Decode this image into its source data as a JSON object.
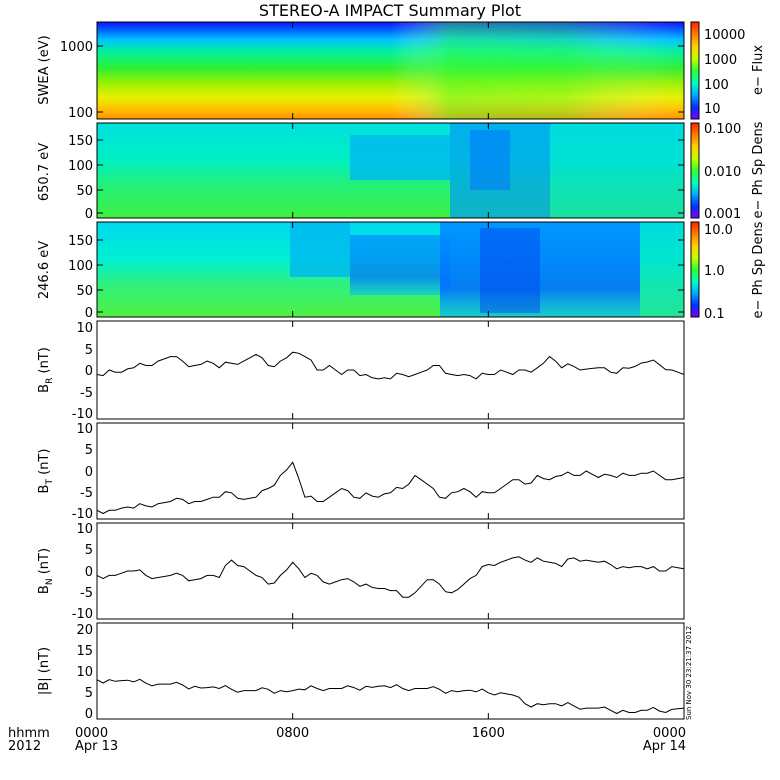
{
  "title": "STEREO-A IMPACT Summary Plot",
  "timestamp": "Sun Nov 30 23:21:37 2012",
  "x_axis": {
    "label_row1": "hhmm",
    "label_row2": "2012",
    "ticks": [
      {
        "hours": 0,
        "time": "0000",
        "date": "Apr 13"
      },
      {
        "hours": 8,
        "time": "0800",
        "date": ""
      },
      {
        "hours": 16,
        "time": "1600",
        "date": ""
      },
      {
        "hours": 24,
        "time": "0000",
        "date": "Apr 14"
      }
    ]
  },
  "colors": {
    "background": "#ffffff",
    "line": "#000000",
    "spectrogram_scale": [
      "#7f00ff",
      "#0030ff",
      "#00aaff",
      "#00ffc0",
      "#30ff30",
      "#c0ff00",
      "#ffd000",
      "#ff8000",
      "#ff2000"
    ]
  },
  "panels": {
    "swea": {
      "ylabel": "SWEA (eV)",
      "yticks": [
        "1000",
        "100"
      ],
      "colorbar_label": "e− Flux",
      "colorbar_ticks": [
        "10000",
        "1000",
        "100",
        "10"
      ]
    },
    "pad650": {
      "ylabel": "650.7 eV",
      "yticks": [
        "150",
        "100",
        "50",
        "0"
      ],
      "colorbar_label": "e− Ph Sp Dens",
      "colorbar_ticks": [
        "0.100",
        "0.010",
        "0.001"
      ]
    },
    "pad246": {
      "ylabel": "246.6 eV",
      "yticks": [
        "150",
        "100",
        "50",
        "0"
      ],
      "colorbar_label": "e− Ph Sp Dens",
      "colorbar_ticks": [
        "10.0",
        "1.0",
        "0.1"
      ]
    },
    "br": {
      "ylabel": "B",
      "ysub": "R",
      "yunit": " (nT)",
      "yticks": [
        "10",
        "5",
        "0",
        "-5",
        "-10"
      ]
    },
    "bt": {
      "ylabel": "B",
      "ysub": "T",
      "yunit": " (nT)",
      "yticks": [
        "10",
        "5",
        "0",
        "-5",
        "-10"
      ]
    },
    "bn": {
      "ylabel": "B",
      "ysub": "N",
      "yunit": " (nT)",
      "yticks": [
        "10",
        "5",
        "0",
        "-5",
        "-10"
      ]
    },
    "bmag": {
      "ylabel": "|B| (nT)",
      "yticks": [
        "20",
        "15",
        "10",
        "5",
        "0"
      ]
    }
  },
  "chart_data": [
    {
      "type": "heatmap",
      "name": "SWEA",
      "x_range_hours": [
        0,
        24
      ],
      "y_scale": "log",
      "ylim": [
        90,
        2000
      ],
      "color_scale": "log",
      "color_range": [
        10,
        20000
      ]
    },
    {
      "type": "heatmap",
      "name": "650.7 eV",
      "x_range_hours": [
        0,
        24
      ],
      "ylim": [
        0,
        180
      ],
      "color_scale": "log",
      "color_range": [
        0.001,
        0.1
      ]
    },
    {
      "type": "heatmap",
      "name": "246.6 eV",
      "x_range_hours": [
        0,
        24
      ],
      "ylim": [
        0,
        180
      ],
      "color_scale": "log",
      "color_range": [
        0.1,
        10
      ]
    },
    {
      "type": "line",
      "name": "BR",
      "x_hours": [
        0,
        0.5,
        1,
        1.5,
        2,
        2.5,
        3,
        3.5,
        4,
        4.5,
        5,
        5.5,
        6,
        6.5,
        7,
        7.5,
        8,
        8.5,
        9,
        9.5,
        10,
        10.5,
        11,
        11.5,
        12,
        12.5,
        13,
        13.5,
        14,
        14.5,
        15,
        15.5,
        16,
        16.5,
        17,
        17.5,
        18,
        18.5,
        19,
        19.5,
        20,
        20.5,
        21,
        21.5,
        22,
        22.5,
        23,
        23.5,
        24
      ],
      "values": [
        -1,
        0,
        -0.5,
        0.5,
        1,
        2,
        3,
        2,
        1,
        2,
        0.5,
        1.5,
        2,
        3.5,
        1,
        2,
        4,
        3,
        0,
        1,
        -1,
        0,
        -1,
        -2,
        -2,
        -1,
        -1,
        0,
        1,
        -1,
        -1,
        -2,
        -1,
        0,
        -1,
        0,
        0.5,
        3,
        0.5,
        0.8,
        0.2,
        0.5,
        -0.5,
        0.5,
        0.8,
        1.8,
        1.2,
        0,
        -1
      ],
      "ylim": [
        -11,
        11
      ]
    },
    {
      "type": "line",
      "name": "BT",
      "x_hours": [
        0,
        0.5,
        1,
        1.5,
        2,
        2.5,
        3,
        3.5,
        4,
        4.5,
        5,
        5.5,
        6,
        6.5,
        7,
        7.5,
        8,
        8.5,
        9,
        9.5,
        10,
        10.5,
        11,
        11.5,
        12,
        12.5,
        13,
        13.5,
        14,
        14.5,
        15,
        15.5,
        16,
        16.5,
        17,
        17.5,
        18,
        18.5,
        19,
        19.5,
        20,
        20.5,
        21,
        21.5,
        22,
        22.5,
        23,
        23.5,
        24
      ],
      "values": [
        -9,
        -9,
        -8.5,
        -8.5,
        -8,
        -7.5,
        -7,
        -6.5,
        -7,
        -6.5,
        -6,
        -5,
        -6.5,
        -6,
        -4,
        -1,
        2,
        -6,
        -7,
        -6,
        -4,
        -6,
        -5,
        -6,
        -5,
        -4,
        -1,
        -3,
        -6,
        -5,
        -4,
        -6,
        -5,
        -4,
        -2,
        -3,
        -1,
        -2,
        -1,
        -1,
        0,
        -1.5,
        -1,
        -0.5,
        -1,
        -0.5,
        -1,
        -2,
        -1.5
      ],
      "ylim": [
        -11,
        11
      ]
    },
    {
      "type": "line",
      "name": "BN",
      "x_hours": [
        0,
        0.5,
        1,
        1.5,
        2,
        2.5,
        3,
        3.5,
        4,
        4.5,
        5,
        5.5,
        6,
        6.5,
        7,
        7.5,
        8,
        8.5,
        9,
        9.5,
        10,
        10.5,
        11,
        11.5,
        12,
        12.5,
        13,
        13.5,
        14,
        14.5,
        15,
        15.5,
        16,
        16.5,
        17,
        17.5,
        18,
        18.5,
        19,
        19.5,
        20,
        20.5,
        21,
        21.5,
        22,
        22.5,
        23,
        23.5,
        24
      ],
      "values": [
        -1,
        -1,
        -0.5,
        0,
        -1,
        -1.5,
        -1,
        -1,
        -2,
        -1,
        -1.5,
        2.5,
        1,
        -1,
        -3,
        -1,
        2,
        -1.5,
        -1,
        -3,
        -2,
        -2.5,
        -3,
        -4,
        -4.5,
        -6,
        -5,
        -2,
        -3,
        -5,
        -3,
        -1,
        1.5,
        2,
        3,
        2.5,
        3,
        2,
        1,
        3,
        2.5,
        2,
        1.5,
        1,
        1,
        0.5,
        0,
        1,
        0.5
      ],
      "ylim": [
        -11,
        11
      ]
    },
    {
      "type": "line",
      "name": "|B|",
      "x_hours": [
        0,
        0.5,
        1,
        1.5,
        2,
        2.5,
        3,
        3.5,
        4,
        4.5,
        5,
        5.5,
        6,
        6.5,
        7,
        7.5,
        8,
        8.5,
        9,
        9.5,
        10,
        10.5,
        11,
        11.5,
        12,
        12.5,
        13,
        13.5,
        14,
        14.5,
        15,
        15.5,
        16,
        16.5,
        17,
        17.5,
        18,
        18.5,
        19,
        19.5,
        20,
        20.5,
        21,
        21.5,
        22,
        22.5,
        23,
        23.5,
        24
      ],
      "values": [
        8,
        8,
        7.8,
        7.5,
        7.2,
        7,
        7,
        6.8,
        6.5,
        6.2,
        6,
        5.8,
        5.5,
        5.5,
        5.8,
        5.5,
        5.5,
        5.7,
        6,
        6,
        6,
        6.2,
        6.5,
        6.5,
        6.2,
        6,
        6,
        6,
        5.8,
        5.5,
        5.5,
        5.2,
        5,
        5,
        4.5,
        2.5,
        2.5,
        2.5,
        2,
        2,
        1.5,
        1.5,
        1,
        1,
        0.5,
        1,
        0.8,
        1.2,
        1.5
      ],
      "ylim": [
        -1,
        21
      ]
    }
  ]
}
